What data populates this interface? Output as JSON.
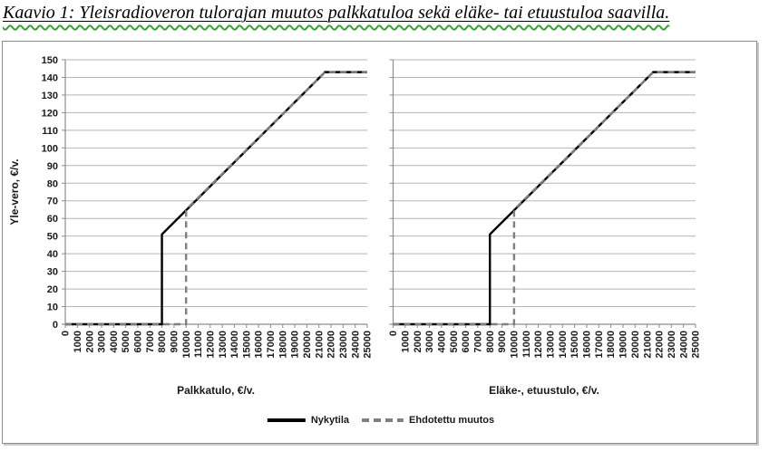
{
  "page": {
    "title": "Kaavio 1: Yleisradioveron tulorajan muutos palkkatuloa sekä eläke- tai etuustuloa saavilla."
  },
  "colors": {
    "gridline": "#b5b5b5",
    "axis": "#8c8c8c",
    "text": "#1a1a1a",
    "nykytila_line": "#000000",
    "ehdotettu_line": "#7f7f7f",
    "title_wavy_underline": "#3aa035",
    "frame_border": "#8c8c8c"
  },
  "chart_data": [
    {
      "type": "line",
      "xlabel": "Palkkatulo, €/v.",
      "ylabel": "Yle-vero, €/v.",
      "xlim": [
        0,
        25000
      ],
      "ylim": [
        0,
        150
      ],
      "grid": true,
      "legend_position": "bottom-center",
      "x_tick_labels": [
        "0",
        "1000",
        "2000",
        "3000",
        "4000",
        "5000",
        "6000",
        "7000",
        "8000",
        "9000",
        "10000",
        "11000",
        "12000",
        "13000",
        "14000",
        "15000",
        "16000",
        "17000",
        "18000",
        "19000",
        "20000",
        "21000",
        "22000",
        "23000",
        "24000",
        "25000"
      ],
      "y_tick_labels": [
        "0",
        "10",
        "20",
        "30",
        "40",
        "50",
        "60",
        "70",
        "80",
        "90",
        "100",
        "110",
        "120",
        "130",
        "140",
        "150"
      ],
      "series": [
        {
          "name": "Nykytila",
          "style": "solid",
          "color": "#000000",
          "points": [
            [
              0,
              0
            ],
            [
              8000,
              0
            ],
            [
              8000,
              51
            ],
            [
              21500,
              143
            ],
            [
              25000,
              143
            ]
          ]
        },
        {
          "name": "Ehdotettu muutos",
          "style": "dashed",
          "color": "#7f7f7f",
          "points": [
            [
              0,
              0
            ],
            [
              10000,
              0
            ],
            [
              10000,
              65
            ],
            [
              21500,
              143
            ],
            [
              25000,
              143
            ]
          ]
        }
      ]
    },
    {
      "type": "line",
      "xlabel": "Eläke-, etuustulo, €/v.",
      "ylabel": "Yle-vero, €/v.",
      "xlim": [
        0,
        25000
      ],
      "ylim": [
        0,
        150
      ],
      "grid": true,
      "legend_position": "bottom-center",
      "x_tick_labels": [
        "0",
        "1000",
        "2000",
        "3000",
        "4000",
        "5000",
        "6000",
        "7000",
        "8000",
        "9000",
        "10000",
        "11000",
        "12000",
        "13000",
        "14000",
        "15000",
        "16000",
        "17000",
        "18000",
        "19000",
        "20000",
        "21000",
        "22000",
        "23000",
        "24000",
        "25000"
      ],
      "y_tick_labels": [
        "0",
        "10",
        "20",
        "30",
        "40",
        "50",
        "60",
        "70",
        "80",
        "90",
        "100",
        "110",
        "120",
        "130",
        "140",
        "150"
      ],
      "series": [
        {
          "name": "Nykytila",
          "style": "solid",
          "color": "#000000",
          "points": [
            [
              0,
              0
            ],
            [
              8000,
              0
            ],
            [
              8000,
              51
            ],
            [
              21500,
              143
            ],
            [
              25000,
              143
            ]
          ]
        },
        {
          "name": "Ehdotettu muutos",
          "style": "dashed",
          "color": "#7f7f7f",
          "points": [
            [
              0,
              0
            ],
            [
              10000,
              0
            ],
            [
              10000,
              65
            ],
            [
              21500,
              143
            ],
            [
              25000,
              143
            ]
          ]
        }
      ]
    }
  ]
}
